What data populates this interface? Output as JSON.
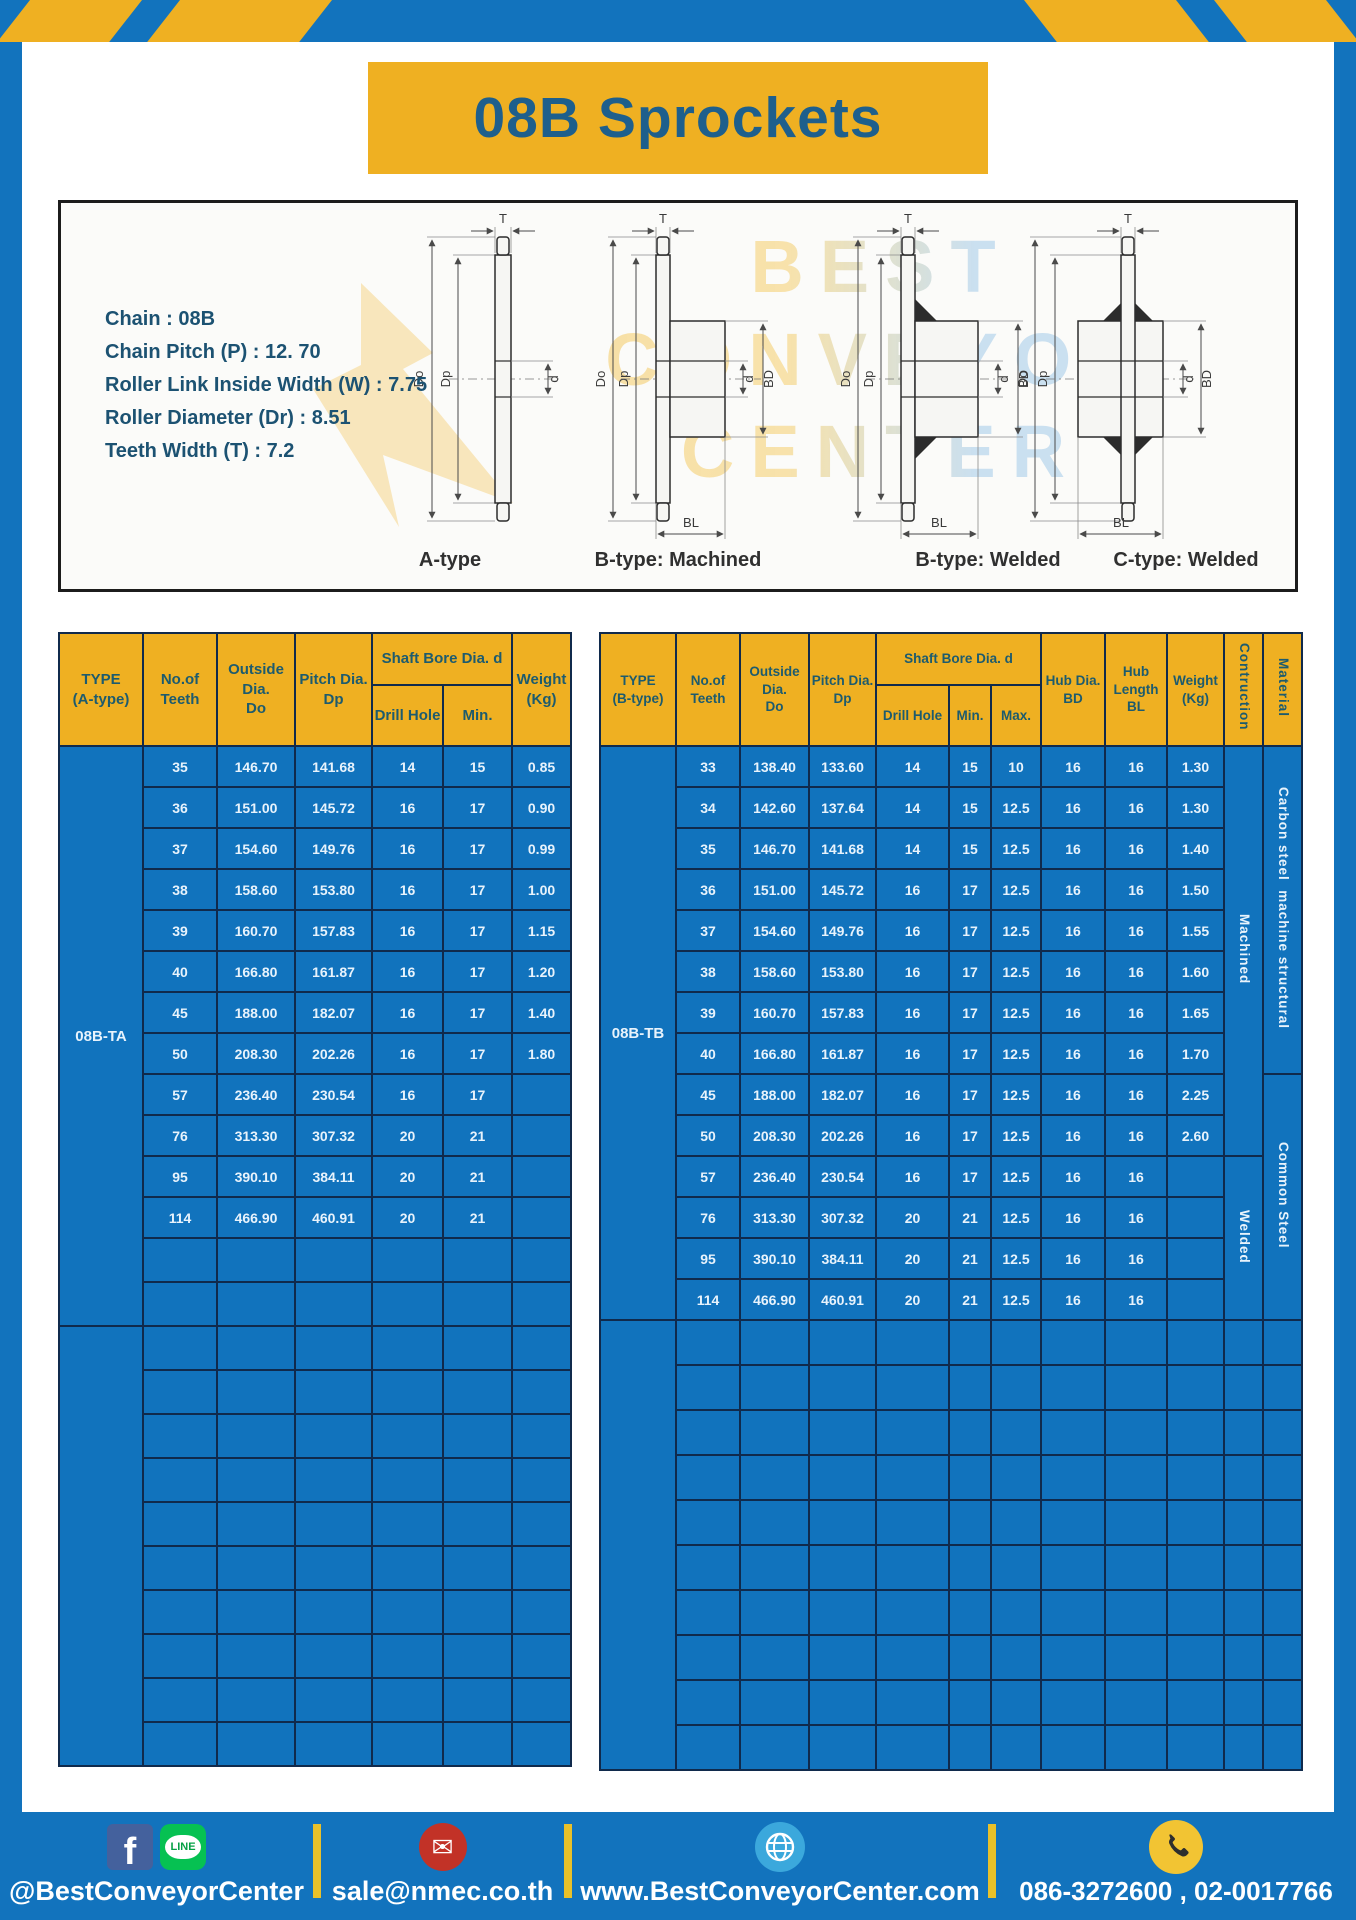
{
  "header": {
    "title": "08B Sprockets"
  },
  "specs": {
    "lines": [
      "Chain : 08B",
      "Chain Pitch (P) : 12. 70",
      "Roller Link Inside Width (W) : 7.75",
      "Roller Diameter (Dr) : 8.51",
      "Teeth Width (T) : 7.2"
    ]
  },
  "diagram": {
    "labels": [
      "A-type",
      "B-type: Machined",
      "B-type: Welded",
      "C-type: Welded"
    ],
    "dim_labels": {
      "T": "T",
      "Do": "Do",
      "Dp": "Dp",
      "d": "d",
      "BD": "BD",
      "BL": "BL"
    },
    "watermark_lines": [
      "BEST",
      "CONVEYOR",
      "CENTER"
    ]
  },
  "table_a": {
    "title_cell": "TYPE\n(A-type)",
    "headers": {
      "teeth": "No.of\nTeeth",
      "outside": "Outside\nDia.\nDo",
      "pitch": "Pitch Dia.\nDp",
      "shaft_bore": "Shaft Bore Dia. d",
      "drill": "Drill Hole",
      "min": "Min.",
      "weight": "Weight\n(Kg)"
    },
    "type_label": "08B-TA",
    "rows": [
      [
        "35",
        "146.70",
        "141.68",
        "14",
        "15",
        "0.85"
      ],
      [
        "36",
        "151.00",
        "145.72",
        "16",
        "17",
        "0.90"
      ],
      [
        "37",
        "154.60",
        "149.76",
        "16",
        "17",
        "0.99"
      ],
      [
        "38",
        "158.60",
        "153.80",
        "16",
        "17",
        "1.00"
      ],
      [
        "39",
        "160.70",
        "157.83",
        "16",
        "17",
        "1.15"
      ],
      [
        "40",
        "166.80",
        "161.87",
        "16",
        "17",
        "1.20"
      ],
      [
        "45",
        "188.00",
        "182.07",
        "16",
        "17",
        "1.40"
      ],
      [
        "50",
        "208.30",
        "202.26",
        "16",
        "17",
        "1.80"
      ],
      [
        "57",
        "236.40",
        "230.54",
        "16",
        "17",
        ""
      ],
      [
        "76",
        "313.30",
        "307.32",
        "20",
        "21",
        ""
      ],
      [
        "95",
        "390.10",
        "384.11",
        "20",
        "21",
        ""
      ],
      [
        "114",
        "466.90",
        "460.91",
        "20",
        "21",
        ""
      ]
    ],
    "empty_rows": 12
  },
  "table_b": {
    "title_cell": "TYPE\n(B-type)",
    "headers": {
      "teeth": "No.of\nTeeth",
      "outside": "Outside\nDia.\nDo",
      "pitch": "Pitch Dia.\nDp",
      "shaft_bore": "Shaft Bore Dia. d",
      "drill": "Drill Hole",
      "min": "Min.",
      "max": "Max.",
      "hub_dia": "Hub Dia.\nBD",
      "hub_len": "Hub\nLength\nBL",
      "weight": "Weight\n(Kg)",
      "construction": "Contruction",
      "material": "Material"
    },
    "type_label": "08B-TB",
    "rows": [
      [
        "33",
        "138.40",
        "133.60",
        "14",
        "15",
        "10",
        "16",
        "16",
        "1.30"
      ],
      [
        "34",
        "142.60",
        "137.64",
        "14",
        "15",
        "12.5",
        "16",
        "16",
        "1.30"
      ],
      [
        "35",
        "146.70",
        "141.68",
        "14",
        "15",
        "12.5",
        "16",
        "16",
        "1.40"
      ],
      [
        "36",
        "151.00",
        "145.72",
        "16",
        "17",
        "12.5",
        "16",
        "16",
        "1.50"
      ],
      [
        "37",
        "154.60",
        "149.76",
        "16",
        "17",
        "12.5",
        "16",
        "16",
        "1.55"
      ],
      [
        "38",
        "158.60",
        "153.80",
        "16",
        "17",
        "12.5",
        "16",
        "16",
        "1.60"
      ],
      [
        "39",
        "160.70",
        "157.83",
        "16",
        "17",
        "12.5",
        "16",
        "16",
        "1.65"
      ],
      [
        "40",
        "166.80",
        "161.87",
        "16",
        "17",
        "12.5",
        "16",
        "16",
        "1.70"
      ],
      [
        "45",
        "188.00",
        "182.07",
        "16",
        "17",
        "12.5",
        "16",
        "16",
        "2.25"
      ],
      [
        "50",
        "208.30",
        "202.26",
        "16",
        "17",
        "12.5",
        "16",
        "16",
        "2.60"
      ],
      [
        "57",
        "236.40",
        "230.54",
        "16",
        "17",
        "12.5",
        "16",
        "16",
        ""
      ],
      [
        "76",
        "313.30",
        "307.32",
        "20",
        "21",
        "12.5",
        "16",
        "16",
        ""
      ],
      [
        "95",
        "390.10",
        "384.11",
        "20",
        "21",
        "12.5",
        "16",
        "16",
        ""
      ],
      [
        "114",
        "466.90",
        "460.91",
        "20",
        "21",
        "12.5",
        "16",
        "16",
        ""
      ]
    ],
    "construction_spans": [
      {
        "label": "Machined",
        "row_count": 10
      },
      {
        "label": "Welded",
        "row_count": 4
      }
    ],
    "material_spans": [
      {
        "label": "Carbon steel  machine structural",
        "row_count": 8
      },
      {
        "label": "Common Steel",
        "row_count": 6
      }
    ],
    "empty_rows": 10
  },
  "footer": {
    "facebook_letter": "f",
    "line_text": "LINE",
    "social_label": "@BestConveyorCenter",
    "email": "sale@nmec.co.th",
    "website": "www.BestConveyorCenter.com",
    "phone": "086-3272600 , 02-0017766"
  },
  "colors": {
    "frame_blue": "#1273BD",
    "accent_yellow": "#EFB022",
    "table_cell_blue": "#1173BD",
    "table_border_navy": "#102A4C",
    "title_text_blue": "#1E5F8C",
    "header_text_teal": "#1D5B6E",
    "footer_text": "#FFFFFF"
  }
}
